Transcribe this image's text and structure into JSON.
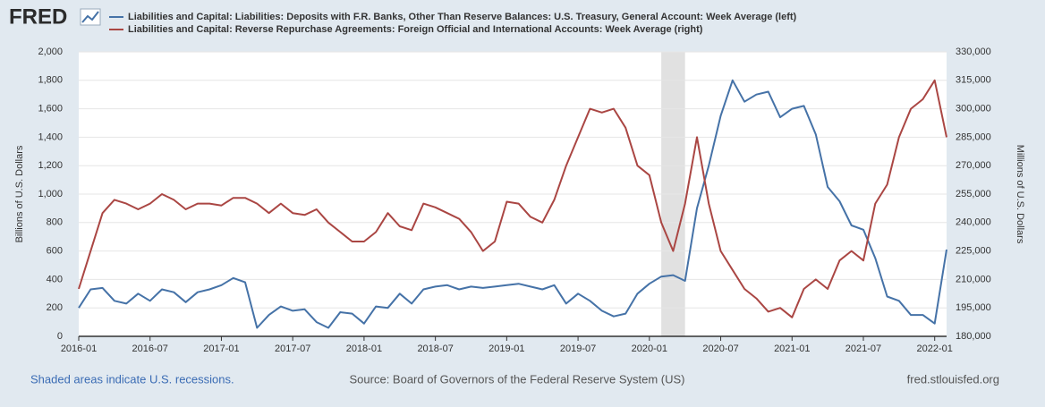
{
  "chart_data": {
    "type": "line",
    "logo": "FRED",
    "x": [
      "2016-01",
      "2016-02",
      "2016-03",
      "2016-04",
      "2016-05",
      "2016-06",
      "2016-07",
      "2016-08",
      "2016-09",
      "2016-10",
      "2016-11",
      "2016-12",
      "2017-01",
      "2017-02",
      "2017-03",
      "2017-04",
      "2017-05",
      "2017-06",
      "2017-07",
      "2017-08",
      "2017-09",
      "2017-10",
      "2017-11",
      "2017-12",
      "2018-01",
      "2018-02",
      "2018-03",
      "2018-04",
      "2018-05",
      "2018-06",
      "2018-07",
      "2018-08",
      "2018-09",
      "2018-10",
      "2018-11",
      "2018-12",
      "2019-01",
      "2019-02",
      "2019-03",
      "2019-04",
      "2019-05",
      "2019-06",
      "2019-07",
      "2019-08",
      "2019-09",
      "2019-10",
      "2019-11",
      "2019-12",
      "2020-01",
      "2020-02",
      "2020-03",
      "2020-04",
      "2020-05",
      "2020-06",
      "2020-07",
      "2020-08",
      "2020-09",
      "2020-10",
      "2020-11",
      "2020-12",
      "2021-01",
      "2021-02",
      "2021-03",
      "2021-04",
      "2021-05",
      "2021-06",
      "2021-07",
      "2021-08",
      "2021-09",
      "2021-10",
      "2021-11",
      "2021-12",
      "2022-01",
      "2022-02"
    ],
    "series": [
      {
        "name": "Liabilities and Capital: Liabilities: Deposits with F.R. Banks, Other Than Reserve Balances: U.S. Treasury, General Account: Week Average (left)",
        "color": "#4572a7",
        "axis": "y",
        "values": [
          200,
          330,
          340,
          250,
          230,
          300,
          250,
          330,
          310,
          240,
          310,
          330,
          360,
          410,
          380,
          60,
          150,
          210,
          180,
          190,
          100,
          60,
          170,
          160,
          90,
          210,
          200,
          300,
          230,
          330,
          350,
          360,
          330,
          350,
          340,
          350,
          360,
          370,
          350,
          330,
          360,
          230,
          300,
          250,
          180,
          140,
          160,
          300,
          370,
          420,
          430,
          390,
          900,
          1200,
          1550,
          1800,
          1650,
          1700,
          1720,
          1540,
          1600,
          1620,
          1420,
          1050,
          950,
          780,
          750,
          550,
          280,
          250,
          150,
          150,
          90,
          610
        ]
      },
      {
        "name": "Liabilities and Capital: Reverse Repurchase Agreements: Foreign Official and International Accounts: Week Average (right)",
        "color": "#aa4643",
        "axis": "y2",
        "values": [
          205000,
          225000,
          245000,
          252000,
          250000,
          247000,
          250000,
          255000,
          252000,
          247000,
          250000,
          250000,
          249000,
          253000,
          253000,
          250000,
          245000,
          250000,
          245000,
          244000,
          247000,
          240000,
          235000,
          230000,
          230000,
          235000,
          245000,
          238000,
          236000,
          250000,
          248000,
          245000,
          242000,
          235000,
          225000,
          230000,
          251000,
          250000,
          243000,
          240000,
          252000,
          270000,
          285000,
          300000,
          298000,
          300000,
          290000,
          270000,
          265000,
          240000,
          225000,
          250000,
          285000,
          250000,
          225000,
          215000,
          205000,
          200000,
          193000,
          195000,
          190000,
          205000,
          210000,
          205000,
          220000,
          225000,
          220000,
          250000,
          260000,
          285000,
          300000,
          305000,
          315000,
          285000
        ]
      }
    ],
    "xlim": [
      "2016-01",
      "2022-02"
    ],
    "xticks": [
      "2016-01",
      "2016-07",
      "2017-01",
      "2017-07",
      "2018-01",
      "2018-07",
      "2019-01",
      "2019-07",
      "2020-01",
      "2020-07",
      "2021-01",
      "2021-07",
      "2022-01"
    ],
    "ylim": [
      0,
      2000
    ],
    "yticks": [
      0,
      200,
      400,
      600,
      800,
      {
        "value": 1000,
        "label": "1,000"
      },
      {
        "value": 1200,
        "label": "1,200"
      },
      {
        "value": 1400,
        "label": "1,400"
      },
      {
        "value": 1600,
        "label": "1,600"
      },
      {
        "value": 1800,
        "label": "1,800"
      },
      {
        "value": 2000,
        "label": "2,000"
      }
    ],
    "y2lim": [
      180000,
      330000
    ],
    "y2ticks": [
      {
        "value": 180000,
        "label": "180,000"
      },
      {
        "value": 195000,
        "label": "195,000"
      },
      {
        "value": 210000,
        "label": "210,000"
      },
      {
        "value": 225000,
        "label": "225,000"
      },
      {
        "value": 240000,
        "label": "240,000"
      },
      {
        "value": 255000,
        "label": "255,000"
      },
      {
        "value": 270000,
        "label": "270,000"
      },
      {
        "value": 285000,
        "label": "285,000"
      },
      {
        "value": 300000,
        "label": "300,000"
      },
      {
        "value": 315000,
        "label": "315,000"
      },
      {
        "value": 330000,
        "label": "330,000"
      }
    ],
    "ylabel": "Billions of U.S. Dollars",
    "y2label": "Millions of U.S. Dollars",
    "grid": true,
    "recessions": [
      {
        "start": "2020-02",
        "end": "2020-04"
      }
    ],
    "recession_note": "Shaded areas indicate U.S. recessions.",
    "source": "Source: Board of Governors of the Federal Reserve System (US)",
    "site": "fred.stlouisfed.org"
  }
}
